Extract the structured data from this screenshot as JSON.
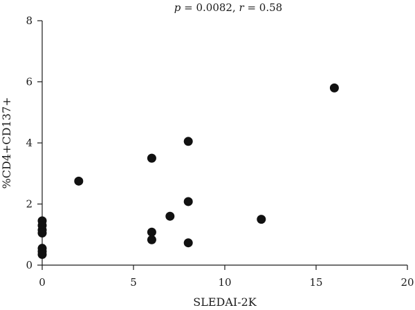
{
  "chart_data": {
    "type": "scatter",
    "title": {
      "p_symbol": "p",
      "p_value": " = 0.0082, ",
      "r_symbol": "r",
      "r_value": " = 0.58"
    },
    "xlabel": "SLEDAI-2K",
    "ylabel": "%CD4+CD137+",
    "xlim": [
      0,
      20
    ],
    "ylim": [
      0,
      8
    ],
    "xticks": [
      0,
      5,
      10,
      15,
      20
    ],
    "yticks": [
      0,
      2,
      4,
      6,
      8
    ],
    "grid": false,
    "point_color": "#111111",
    "points": [
      {
        "x": 0,
        "y": 1.45
      },
      {
        "x": 0,
        "y": 1.3
      },
      {
        "x": 0,
        "y": 1.15
      },
      {
        "x": 0,
        "y": 1.05
      },
      {
        "x": 0,
        "y": 0.55
      },
      {
        "x": 0,
        "y": 0.45
      },
      {
        "x": 0,
        "y": 0.35
      },
      {
        "x": 2,
        "y": 2.75
      },
      {
        "x": 6,
        "y": 3.5
      },
      {
        "x": 6,
        "y": 1.08
      },
      {
        "x": 6,
        "y": 0.83
      },
      {
        "x": 7,
        "y": 1.6
      },
      {
        "x": 8,
        "y": 4.05
      },
      {
        "x": 8,
        "y": 2.08
      },
      {
        "x": 8,
        "y": 0.73
      },
      {
        "x": 12,
        "y": 1.5
      },
      {
        "x": 16,
        "y": 5.8
      }
    ]
  }
}
